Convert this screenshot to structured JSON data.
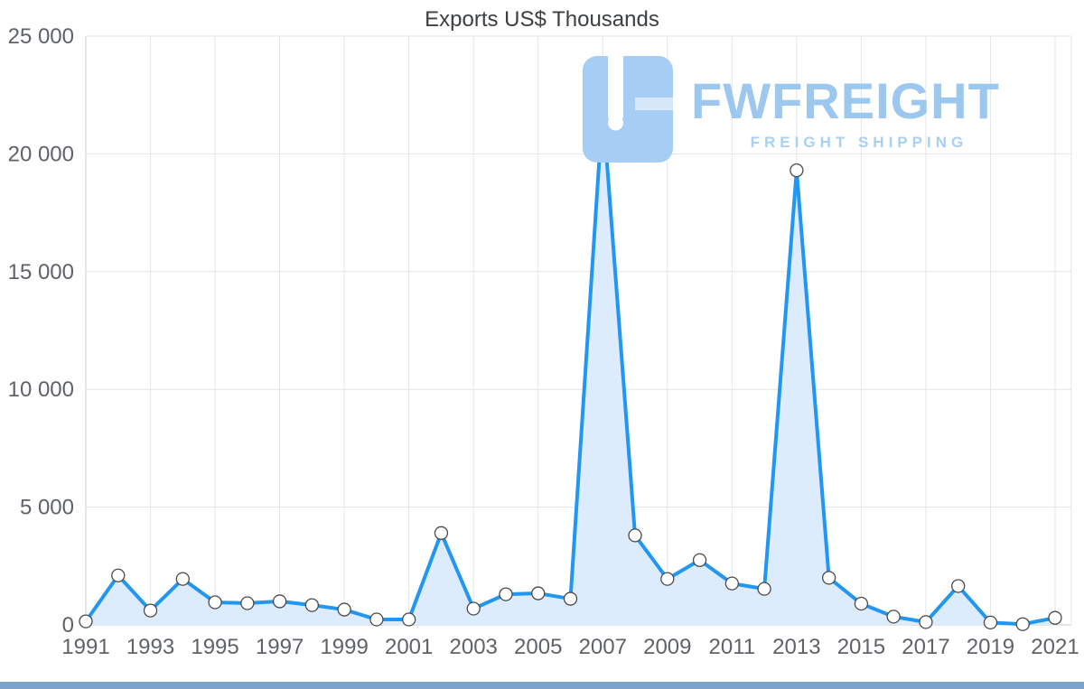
{
  "page": {
    "title": "Exports US$ Thousands"
  },
  "watermark": {
    "title": "FWFREIGHT",
    "subtitle": "FREIGHT SHIPPING"
  },
  "chart_data": {
    "type": "area",
    "title": "Exports US$ Thousands",
    "x": [
      1991,
      1992,
      1993,
      1994,
      1995,
      1996,
      1997,
      1998,
      1999,
      2000,
      2001,
      2002,
      2003,
      2004,
      2005,
      2006,
      2007,
      2008,
      2009,
      2010,
      2011,
      2012,
      2013,
      2014,
      2015,
      2016,
      2017,
      2018,
      2019,
      2020,
      2021
    ],
    "values": [
      150,
      2100,
      610,
      1950,
      960,
      920,
      1000,
      840,
      650,
      230,
      230,
      3900,
      690,
      1300,
      1340,
      1110,
      22000,
      3800,
      1950,
      2750,
      1760,
      1530,
      19300,
      2000,
      900,
      350,
      120,
      1650,
      100,
      30,
      300
    ],
    "xlim": [
      1991,
      2021
    ],
    "ylim": [
      0,
      25000
    ],
    "yticks": [
      0,
      5000,
      10000,
      15000,
      20000,
      25000
    ],
    "ytick_labels": [
      "0",
      "5 000",
      "10 000",
      "15 000",
      "20 000",
      "25 000"
    ],
    "xticks": [
      1991,
      1993,
      1995,
      1997,
      1999,
      2001,
      2003,
      2005,
      2007,
      2009,
      2011,
      2013,
      2015,
      2017,
      2019,
      2021
    ],
    "grid": true,
    "legend": false,
    "colors": {
      "line": "#2196f3",
      "fill": "#ddecfc",
      "marker_fill": "#ffffff",
      "marker_stroke": "#4a4a4a",
      "grid": "#e5e5e5",
      "axis": "#cccccc",
      "tick_text": "#5f6368",
      "title_text": "#3c4043",
      "watermark": "#9cc7ee",
      "footer": "#7ba2c9"
    }
  }
}
